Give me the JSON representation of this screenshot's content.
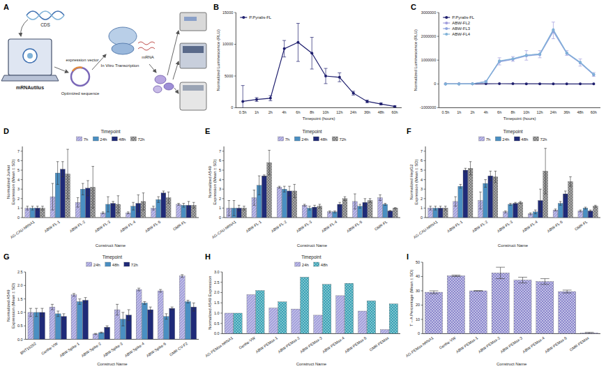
{
  "diagram": {
    "panel_label": "A",
    "cds": "CDS",
    "tool": "mRNAutilus",
    "vector": "expression vector",
    "optimized": "Optimized sequence",
    "ivt": "In Vitro Transcription",
    "mrna": "mRNA"
  },
  "chart_data": [
    {
      "panel_label": "B",
      "type": "line",
      "x_label": "Timepoint (hours)",
      "y_label": "Normalized Luminescence (RLU)",
      "categories": [
        "0.5h",
        "1h",
        "2h",
        "4h",
        "6h",
        "8h",
        "10h",
        "12h",
        "24h",
        "36h",
        "48h",
        "60h"
      ],
      "series": [
        {
          "name": "P.Pyralis-FL",
          "color": "#1f1f6e",
          "marker": "circle",
          "values": [
            1000,
            1300,
            1500,
            9300,
            10300,
            8600,
            5000,
            4800,
            2300,
            1000,
            600,
            200
          ],
          "errors": [
            2500,
            300,
            400,
            1300,
            3000,
            2500,
            1200,
            700,
            300,
            200,
            150,
            100
          ]
        }
      ],
      "ylim": [
        0,
        15000
      ],
      "yticks": [
        0,
        5000,
        10000,
        15000
      ],
      "legend": "upper left",
      "grid": false
    },
    {
      "panel_label": "C",
      "type": "line",
      "x_label": "Timepoint (hours)",
      "y_label": "Normalized Luminescence (RLU)",
      "categories": [
        "0.5h",
        "1h",
        "2h",
        "4h",
        "6h",
        "8h",
        "10h",
        "12h",
        "24h",
        "36h",
        "48h",
        "60h"
      ],
      "series": [
        {
          "name": "P.Pyralis-FL",
          "color": "#1f1f6e",
          "marker": "circle",
          "values": [
            1000,
            1300,
            1500,
            9300,
            10300,
            8600,
            5000,
            4800,
            2300,
            1000,
            600,
            200
          ]
        },
        {
          "name": "ABW-FL2",
          "color": "#a09cdc",
          "marker": "circle",
          "values": [
            0,
            0,
            5000,
            100000,
            950000,
            1050000,
            1200000,
            1250000,
            2250000,
            1300000,
            900000,
            400000
          ],
          "errors": [
            0,
            0,
            2000,
            50000,
            150000,
            100000,
            200000,
            150000,
            350000,
            100000,
            150000,
            80000
          ]
        },
        {
          "name": "ABW-FL3",
          "color": "#8ea2dc",
          "marker": "circle",
          "values": [
            0,
            0,
            4000,
            90000,
            930000,
            1030000,
            1180000,
            1230000,
            2200000,
            1280000,
            880000,
            380000
          ]
        },
        {
          "name": "ABW-FL4",
          "color": "#7fb2d8",
          "marker": "circle",
          "values": [
            0,
            0,
            4500,
            95000,
            970000,
            1060000,
            1210000,
            1260000,
            2280000,
            1310000,
            910000,
            410000
          ]
        }
      ],
      "ylim": [
        -1000000,
        3000000
      ],
      "yticks": [
        -1000000,
        0,
        1000000,
        2000000,
        3000000
      ],
      "legend": "upper left",
      "grid": false
    },
    {
      "panel_label": "D",
      "type": "bar",
      "x_label": "Construct Name",
      "y_label": "Normalized Jurkat Expression (Mean ± SD)",
      "legend_title": "Timepoint",
      "categories": [
        "AG-CAU-hRNA1",
        "ABW-FL-1",
        "ABW-FL-2",
        "ABW-FL-3",
        "ABW-FL-4",
        "ABW-FL-5",
        "GMR-FL"
      ],
      "series": [
        {
          "name": "7h",
          "color": "#a6a3dc",
          "values": [
            1,
            2.2,
            1.6,
            0.5,
            0.5,
            1.0,
            1.4
          ],
          "errors": [
            0.2,
            1.4,
            0.5,
            0.1,
            0.1,
            0.2,
            0.1
          ]
        },
        {
          "name": "24h",
          "color": "#4a8fc2",
          "values": [
            1,
            4.7,
            3.0,
            1.4,
            1.2,
            1.9,
            1.3
          ],
          "errors": [
            0.2,
            1.2,
            0.6,
            0.8,
            0.4,
            0.3,
            0.2
          ]
        },
        {
          "name": "48h",
          "color": "#1f2a78",
          "values": [
            1,
            5.1,
            3.1,
            1.5,
            1.5,
            2.6,
            1.3
          ],
          "errors": [
            0.2,
            0.8,
            0.8,
            0.2,
            0.9,
            0.2,
            0.4
          ]
        },
        {
          "name": "72h",
          "color": "#7a7a7a",
          "values": [
            1,
            4.6,
            3.2,
            1.4,
            1.7,
            2.1,
            1.3
          ],
          "errors": [
            0.2,
            2.6,
            2.2,
            0.9,
            0.9,
            0.6,
            0.3
          ]
        }
      ],
      "ylim": [
        0,
        7.5
      ],
      "yticks": [
        0,
        1,
        2,
        3,
        4,
        5,
        6,
        7
      ],
      "legend": "top",
      "grid": false
    },
    {
      "panel_label": "E",
      "type": "bar",
      "x_label": "Construct Name",
      "y_label": "Normalized A549 Expression (Mean ± SD)",
      "legend_title": "Timepoint",
      "categories": [
        "AG-CAU-hRNA1",
        "ABW-FL-1",
        "ABW-FL-2",
        "ABW-FL-3",
        "ABW-FL-4",
        "ABW-FL-5",
        "GMR-FL"
      ],
      "series": [
        {
          "name": "7h",
          "color": "#a6a3dc",
          "values": [
            1,
            2.1,
            3.2,
            1.3,
            0.6,
            1.7,
            2.1
          ],
          "errors": [
            0.8,
            0.8,
            0.1,
            0.1,
            0.1,
            0.8,
            0.3
          ]
        },
        {
          "name": "24h",
          "color": "#4a8fc2",
          "values": [
            1,
            3.4,
            3.0,
            1.0,
            0.6,
            1.2,
            1.4
          ],
          "errors": [
            0.8,
            1.0,
            0.3,
            0.2,
            0.1,
            0.2,
            0.1
          ]
        },
        {
          "name": "48h",
          "color": "#1f2a78",
          "values": [
            1,
            4.4,
            2.8,
            1.1,
            1.4,
            1.6,
            0.7
          ],
          "errors": [
            0.3,
            0.1,
            0.5,
            0.2,
            0.2,
            0.4,
            0.05
          ]
        },
        {
          "name": "72h",
          "color": "#7a7a7a",
          "values": [
            1,
            5.8,
            2.8,
            1.2,
            2.0,
            1.8,
            1.0
          ],
          "errors": [
            0.2,
            1.3,
            0.7,
            0.2,
            0.2,
            0.2,
            0.05
          ]
        }
      ],
      "ylim": [
        0,
        7.5
      ],
      "yticks": [
        0,
        1,
        2,
        3,
        4,
        5,
        6,
        7
      ],
      "legend": "top",
      "grid": false
    },
    {
      "panel_label": "F",
      "type": "bar",
      "x_label": "Construct Name",
      "y_label": "Normalized HepG2 Expression (Mean ± SD)",
      "legend_title": "Timepoint",
      "categories": [
        "AG-CAU-hRNA1",
        "ABW-FL-1",
        "ABW-FL-2",
        "ABW-FL-3",
        "ABW-FL-4",
        "ABW-FL-5",
        "GMR-FL"
      ],
      "series": [
        {
          "name": "7h",
          "color": "#a6a3dc",
          "values": [
            1,
            1.7,
            1.8,
            0.6,
            0.4,
            0.8,
            0.7
          ],
          "errors": [
            0.2,
            0.5,
            0.9,
            0.1,
            0.1,
            0.1,
            0.1
          ]
        },
        {
          "name": "24h",
          "color": "#4a8fc2",
          "values": [
            1,
            3.3,
            3.6,
            1.4,
            0.6,
            1.5,
            1.0
          ],
          "errors": [
            0.2,
            0.2,
            0.4,
            0.1,
            0.2,
            0.2,
            0.1
          ]
        },
        {
          "name": "48h",
          "color": "#1f2a78",
          "values": [
            1,
            5.0,
            4.4,
            1.5,
            1.8,
            2.5,
            0.7
          ],
          "errors": [
            0.2,
            0.2,
            0.5,
            0.1,
            1.2,
            0.3,
            0.1
          ]
        },
        {
          "name": "72h",
          "color": "#7a7a7a",
          "values": [
            1,
            5.2,
            4.3,
            1.6,
            4.9,
            3.8,
            1.2
          ],
          "errors": [
            0.2,
            0.7,
            0.6,
            0.1,
            2.4,
            0.5,
            0.1
          ]
        }
      ],
      "ylim": [
        0,
        7.5
      ],
      "yticks": [
        0,
        1,
        2,
        3,
        4,
        5,
        6,
        7
      ],
      "legend": "top",
      "grid": false
    },
    {
      "panel_label": "G",
      "type": "bar",
      "x_label": "Construct Name",
      "y_label": "Normalized A549 Expression (Mean ± SD)",
      "legend_title": "Timepoint",
      "categories": [
        "BNT162b2",
        "Genhe-VW",
        "ABW-Spike-1",
        "ABW-Spike-2",
        "ABW-Spike-3",
        "ABW-Spike-4",
        "ABW-Spike-5",
        "GMR-CV-F2"
      ],
      "series": [
        {
          "name": "24h",
          "color": "#a6a3dc",
          "values": [
            1.0,
            1.2,
            1.65,
            0.2,
            1.1,
            1.85,
            1.8,
            2.35
          ],
          "errors": [
            0.15,
            0.1,
            0.05,
            0.02,
            0.2,
            0.05,
            0.05,
            0.05
          ]
        },
        {
          "name": "48h",
          "color": "#4a8fc2",
          "values": [
            1.0,
            0.95,
            1.4,
            0.25,
            0.75,
            1.35,
            0.85,
            1.4
          ],
          "errors": [
            0.15,
            0.1,
            0.1,
            0.02,
            0.25,
            0.05,
            0.1,
            0.05
          ]
        },
        {
          "name": "72h",
          "color": "#1f2a78",
          "values": [
            1.0,
            0.85,
            1.45,
            0.45,
            0.9,
            1.1,
            1.15,
            1.2
          ],
          "errors": [
            0.15,
            0.1,
            0.1,
            0.05,
            0.2,
            0.1,
            0.05,
            0.15
          ]
        }
      ],
      "ylim": [
        0,
        2.5
      ],
      "yticks": [
        {
          "value": 0,
          "label": "0.0"
        },
        {
          "value": 0.5,
          "label": "0.5"
        },
        {
          "value": 1,
          "label": "1.0"
        },
        {
          "value": 1.5,
          "label": "1.5"
        },
        {
          "value": 2,
          "label": "2.0"
        },
        {
          "value": 2.5,
          "label": "2.5"
        }
      ],
      "legend": "top",
      "grid": false
    },
    {
      "panel_label": "H",
      "type": "bar",
      "x_label": "Construct Name",
      "y_label": "Normalized A549 Expression",
      "legend_title": "Timepoint",
      "categories": [
        "AG-PEMax-hRNA1",
        "Genhe-VW",
        "ABW-PEMax-1",
        "ABW-PEMax-2",
        "ABW-PEMax-3",
        "ABW-PEMax-4",
        "ABW-PEMax-5",
        "GMR-PEMax"
      ],
      "series": [
        {
          "name": "24h",
          "color": "#a6a3dc",
          "values": [
            1.0,
            1.9,
            1.25,
            1.2,
            0.9,
            1.85,
            1.1,
            0.2
          ]
        },
        {
          "name": "48h",
          "color": "#3aa3b5",
          "values": [
            1.0,
            2.1,
            1.55,
            2.75,
            2.4,
            2.45,
            1.6,
            1.45
          ]
        }
      ],
      "ylim": [
        0,
        3
      ],
      "yticks": [
        {
          "value": 0,
          "label": "0.0"
        },
        {
          "value": 0.5,
          "label": "0.5"
        },
        {
          "value": 1,
          "label": "1.0"
        },
        {
          "value": 1.5,
          "label": "1.5"
        },
        {
          "value": 2,
          "label": "2.0"
        },
        {
          "value": 2.5,
          "label": "2.5"
        },
        {
          "value": 3,
          "label": "3.0"
        }
      ],
      "legend": "top",
      "grid": false
    },
    {
      "panel_label": "I",
      "type": "bar",
      "x_label": "Construct Name",
      "y_label": "T→A Percentage (Mean ± SD)",
      "categories": [
        "AG-PEMax-hRNA1",
        "Genhe-VW",
        "ABW-PEMax-1",
        "ABW-PEMax-2",
        "ABW-PEMax-3",
        "ABW-PEMax-4",
        "ABW-PEMax-5",
        "GMR-PEMax"
      ],
      "series": [
        {
          "color": "#8a86cc",
          "values": [
            29,
            40.5,
            30,
            42.5,
            37.5,
            36.5,
            29.5,
            0.5
          ],
          "errors": [
            1,
            0.5,
            0,
            4,
            2,
            2,
            1,
            0.5
          ]
        }
      ],
      "ylim": [
        0,
        50
      ],
      "yticks": [
        0,
        10,
        20,
        30,
        40,
        50
      ],
      "grid": false
    }
  ]
}
